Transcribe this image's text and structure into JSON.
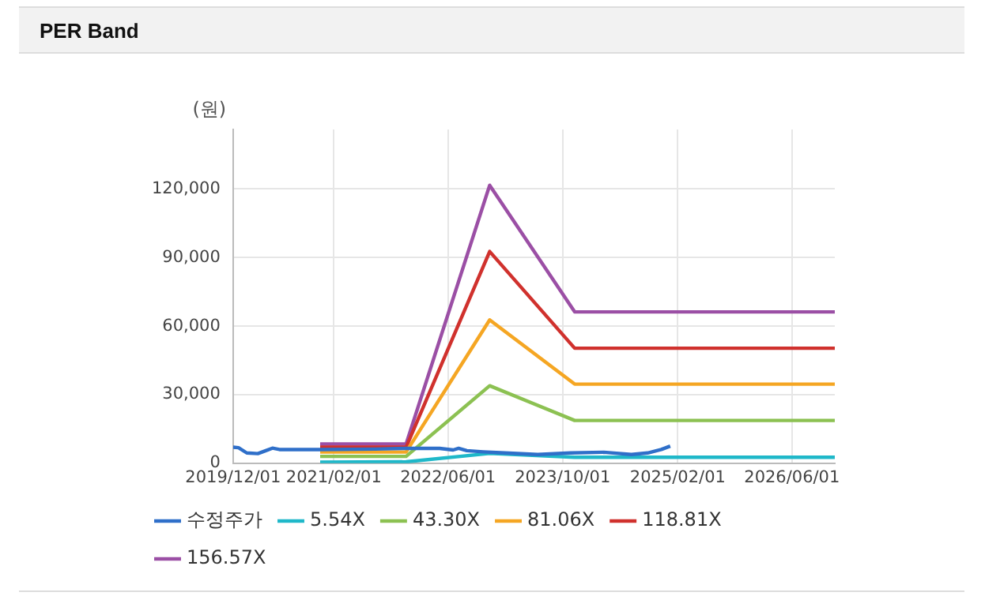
{
  "chart_data": {
    "type": "line",
    "title": "PER Band",
    "ylabel": "(원)",
    "xlim": [
      "2019-12-01",
      "2026-11-30"
    ],
    "xticks": [
      {
        "value": "2019-12-01",
        "label": "2019/12/01"
      },
      {
        "value": "2021-02-01",
        "label": "2021/02/01"
      },
      {
        "value": "2022-06-01",
        "label": "2022/06/01"
      },
      {
        "value": "2023-10-01",
        "label": "2023/10/01"
      },
      {
        "value": "2025-02-01",
        "label": "2025/02/01"
      },
      {
        "value": "2026-06-01",
        "label": "2026/06/01"
      }
    ],
    "ylim": [
      0,
      146000
    ],
    "yticks": [
      0,
      {
        "value": 30000,
        "label": "30,000"
      },
      {
        "value": 60000,
        "label": "60,000"
      },
      {
        "value": 90000,
        "label": "90,000"
      },
      {
        "value": 120000,
        "label": "120,000"
      }
    ],
    "grid": true,
    "legend": "bottom",
    "marker": "none",
    "line_style": "solid",
    "series": [
      {
        "name": "수정주가",
        "color": "#2f6fc9",
        "x": [
          "2019-12-01",
          "2019-12-24",
          "2020-01-28",
          "2020-03-15",
          "2020-04-18",
          "2020-05-16",
          "2020-06-15",
          "2020-12-05",
          "2021-07-27",
          "2021-12-07",
          "2022-04-26",
          "2022-06-23",
          "2022-07-16",
          "2022-08-20",
          "2022-10-28",
          "2023-01-29",
          "2023-06-17",
          "2023-11-04",
          "2024-03-24",
          "2024-07-19",
          "2024-09-26",
          "2024-11-23",
          "2024-12-31"
        ],
        "values": [
          7000,
          6800,
          4500,
          4200,
          5500,
          6600,
          6000,
          6000,
          6200,
          6500,
          6500,
          5800,
          6500,
          5500,
          5000,
          4500,
          3800,
          4500,
          4800,
          3800,
          4500,
          6000,
          7500
        ]
      },
      {
        "name": "5.54X",
        "color": "#1fb8c9",
        "x": [
          "2020-12-05",
          "2021-12-05",
          "2022-11-25",
          "2023-11-21",
          "2026-11-30"
        ],
        "values": [
          500,
          600,
          4300,
          2600,
          2600
        ]
      },
      {
        "name": "43.30X",
        "color": "#8cc152",
        "x": [
          "2020-12-05",
          "2021-12-05",
          "2022-11-25",
          "2023-11-21",
          "2026-11-30"
        ],
        "values": [
          3000,
          3000,
          33900,
          18700,
          18700
        ]
      },
      {
        "name": "81.06X",
        "color": "#f5a623",
        "x": [
          "2020-12-05",
          "2021-12-05",
          "2022-11-25",
          "2023-11-21",
          "2026-11-30"
        ],
        "values": [
          4900,
          4900,
          62700,
          34600,
          34600
        ]
      },
      {
        "name": "118.81X",
        "color": "#d0312d",
        "x": [
          "2020-12-05",
          "2021-12-05",
          "2022-11-25",
          "2023-11-21",
          "2026-11-30"
        ],
        "values": [
          7000,
          7000,
          92600,
          50300,
          50300
        ]
      },
      {
        "name": "156.57X",
        "color": "#9b4fa5",
        "x": [
          "2020-12-05",
          "2021-12-05",
          "2022-11-25",
          "2023-11-21",
          "2026-11-30"
        ],
        "values": [
          8400,
          8400,
          121600,
          66200,
          66200
        ]
      }
    ]
  }
}
